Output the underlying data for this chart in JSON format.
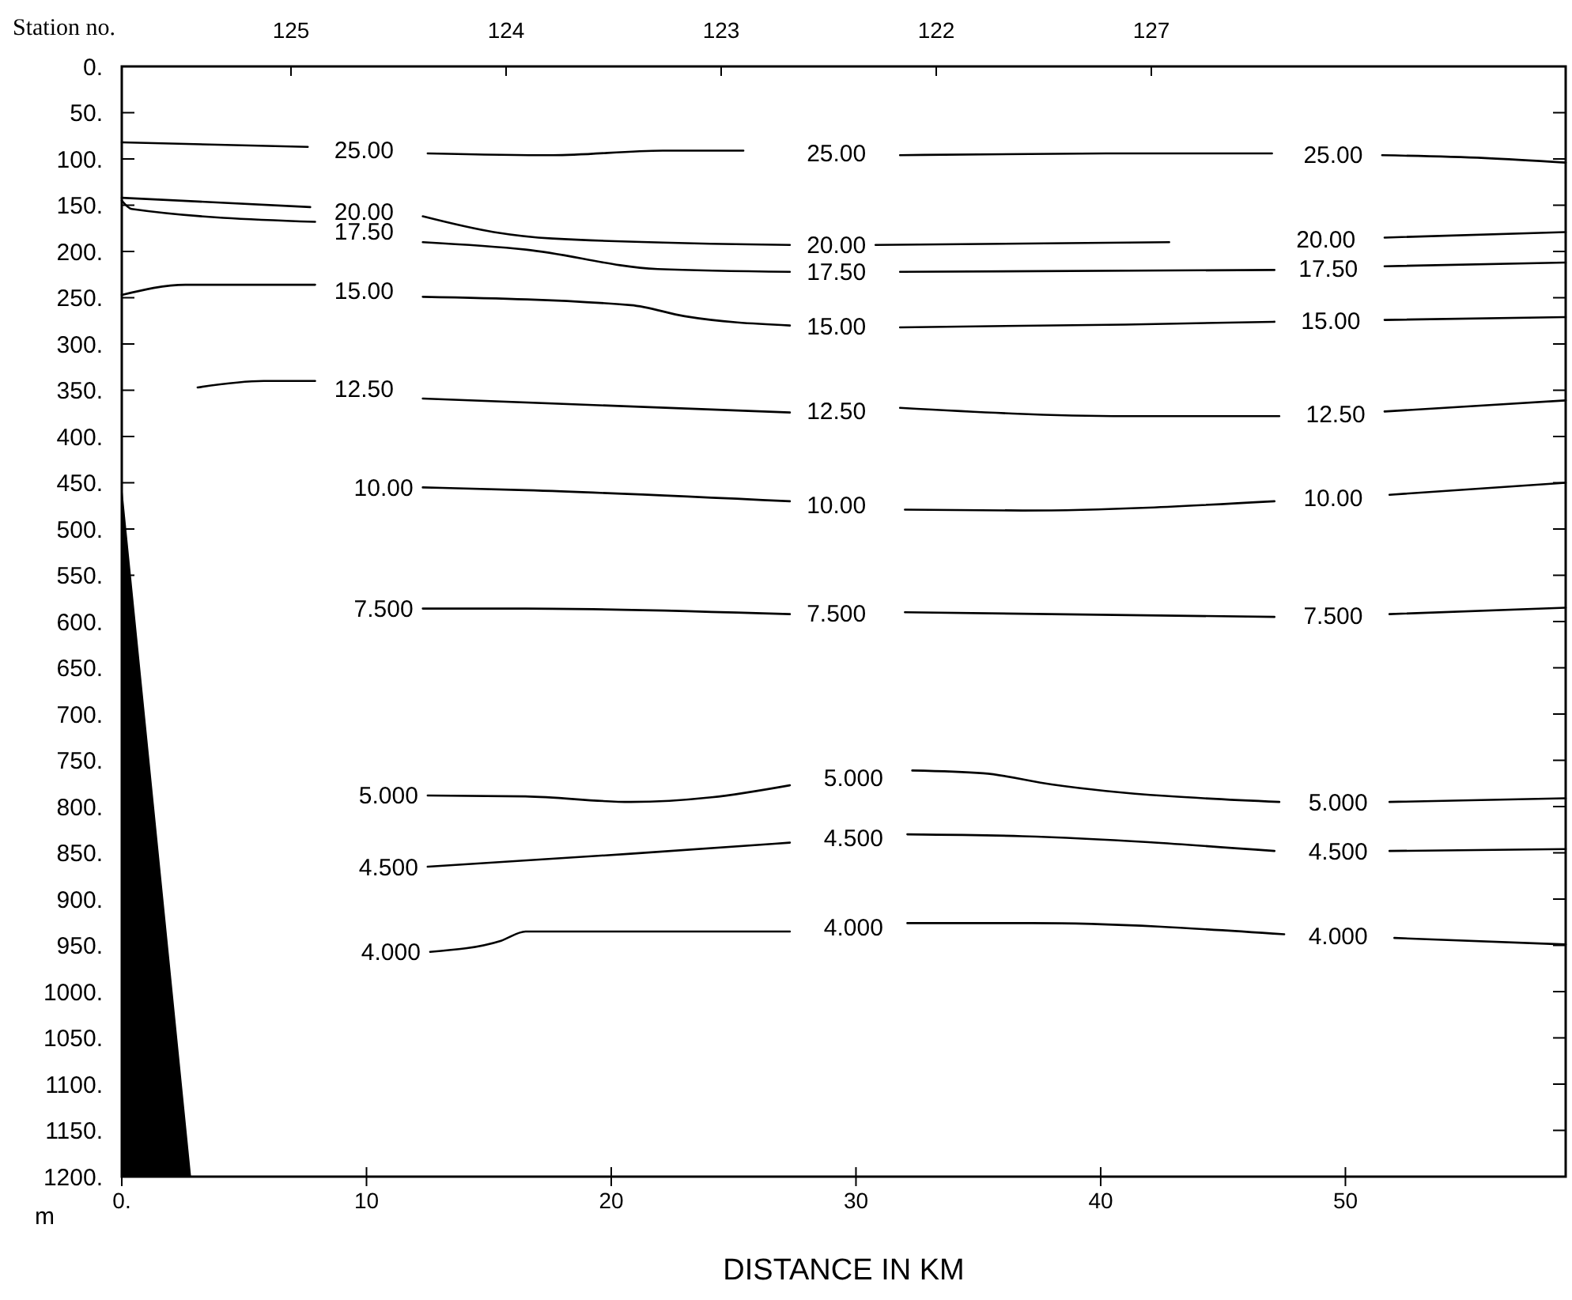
{
  "chart_data": {
    "type": "line",
    "xlabel": "DISTANCE IN KM",
    "ylabel": "m",
    "x2label": "Station no.",
    "xlim": [
      0,
      59
    ],
    "xticks": [
      {
        "value": 0,
        "label": "0."
      },
      10,
      20,
      30,
      40,
      50
    ],
    "annotations": [
      "125",
      "124",
      "123",
      "122",
      "127"
    ],
    "ylim": [
      1200,
      0
    ],
    "yticks": [
      {
        "value": 0,
        "label": "0."
      },
      {
        "value": 50,
        "label": "50."
      },
      {
        "value": 100,
        "label": "100."
      },
      {
        "value": 150,
        "label": "150."
      },
      {
        "value": 200,
        "label": "200."
      },
      {
        "value": 250,
        "label": "250."
      },
      {
        "value": 300,
        "label": "300."
      },
      {
        "value": 350,
        "label": "350."
      },
      {
        "value": 400,
        "label": "400."
      },
      {
        "value": 450,
        "label": "450."
      },
      {
        "value": 500,
        "label": "500."
      },
      {
        "value": 550,
        "label": "550."
      },
      {
        "value": 600,
        "label": "600."
      },
      {
        "value": 650,
        "label": "650."
      },
      {
        "value": 700,
        "label": "700."
      },
      {
        "value": 750,
        "label": "750."
      },
      {
        "value": 800,
        "label": "800."
      },
      {
        "value": 850,
        "label": "850."
      },
      {
        "value": 900,
        "label": "900."
      },
      {
        "value": 950,
        "label": "950."
      },
      {
        "value": 1000,
        "label": "1000."
      },
      {
        "value": 1050,
        "label": "1050."
      },
      {
        "value": 1100,
        "label": "1100."
      },
      {
        "value": 1150,
        "label": "1150."
      },
      {
        "value": 1200,
        "label": "1200."
      }
    ],
    "grid": false,
    "line_style": "solid",
    "series": [
      {
        "name": "25.00",
        "color": "#000000",
        "x": [
          0,
          7.6,
          9.9,
          12.5,
          17.6,
          22.1,
          25.4,
          29.2,
          31.8,
          40.2,
          47,
          49.5,
          51.5,
          55.7,
          59
        ],
        "values": [
          82,
          87,
          null,
          94,
          96,
          91,
          91,
          null,
          96,
          94,
          94,
          null,
          96,
          99,
          104
        ]
      },
      {
        "name": "20.00",
        "color": "#000000",
        "x": [
          0,
          7.7,
          9.9,
          12.3,
          15.2,
          17.6,
          27.3,
          29.2,
          30.8,
          42.8,
          49.2,
          51.6,
          59
        ],
        "values": [
          142,
          152,
          null,
          162,
          179,
          186,
          193,
          null,
          193,
          190,
          null,
          185,
          179
        ]
      },
      {
        "name": "17.50",
        "color": "#000000",
        "x": [
          0,
          0.4,
          7.9,
          9.9,
          12.3,
          16.5,
          21.9,
          27.3,
          29.2,
          31.8,
          47.1,
          49.3,
          51.6,
          59
        ],
        "values": [
          145,
          154,
          168,
          null,
          190,
          198,
          219,
          222,
          null,
          222,
          220,
          null,
          216,
          212
        ]
      },
      {
        "name": "15.00",
        "color": "#000000",
        "x": [
          0,
          2.6,
          7.9,
          9.9,
          12.3,
          20.8,
          23,
          27.3,
          29.2,
          31.8,
          41,
          47.1,
          49.4,
          51.6,
          59
        ],
        "values": [
          247,
          236,
          236,
          null,
          249,
          258,
          270,
          280,
          null,
          282,
          279,
          276,
          null,
          274,
          271
        ]
      },
      {
        "name": "12.50",
        "color": "#000000",
        "x": [
          3.1,
          5.8,
          7.9,
          9.9,
          12.3,
          27.3,
          29.2,
          31.8,
          41,
          47.3,
          49.6,
          51.6,
          59
        ],
        "values": [
          347,
          340,
          340,
          null,
          359,
          374,
          null,
          369,
          378,
          378,
          null,
          373,
          361
        ]
      },
      {
        "name": "10.00",
        "color": "#000000",
        "x": [
          12.3,
          16.5,
          27.3,
          29.2,
          32,
          36.8,
          47.1,
          49.5,
          51.8,
          59
        ],
        "values": [
          455,
          458,
          470,
          null,
          479,
          480,
          470,
          null,
          463,
          450
        ]
      },
      {
        "name": "7.500",
        "color": "#000000",
        "x": [
          12.3,
          16.5,
          27.3,
          29.2,
          32,
          47.1,
          49.5,
          51.8,
          59
        ],
        "values": [
          586,
          586,
          592,
          null,
          590,
          595,
          null,
          592,
          585
        ]
      },
      {
        "name": "5.000",
        "color": "#000000",
        "x": [
          12.5,
          16.5,
          20.8,
          24.1,
          27.3,
          29.9,
          32.3,
          35.2,
          38,
          47.3,
          49.7,
          51.8,
          59
        ],
        "values": [
          788,
          789,
          795,
          790,
          777,
          null,
          761,
          764,
          776,
          795,
          null,
          795,
          791
        ]
      },
      {
        "name": "4.500",
        "color": "#000000",
        "x": [
          12.5,
          20.8,
          27.3,
          29.9,
          32.1,
          36.8,
          47.1,
          49.7,
          51.8,
          59
        ],
        "values": [
          865,
          851,
          839,
          null,
          830,
          832,
          848,
          null,
          848,
          846
        ]
      },
      {
        "name": "4.000",
        "color": "#000000",
        "x": [
          12.6,
          15.5,
          16.5,
          27.3,
          29.9,
          32.1,
          37.2,
          47.5,
          49.7,
          52,
          59
        ],
        "values": [
          957,
          945,
          935,
          935,
          null,
          926,
          926,
          938,
          null,
          942,
          949
        ]
      },
      {
        "type": "area",
        "color": "#000000",
        "x": [
          0,
          2.8
        ],
        "values": [
          460,
          1200
        ]
      }
    ]
  }
}
